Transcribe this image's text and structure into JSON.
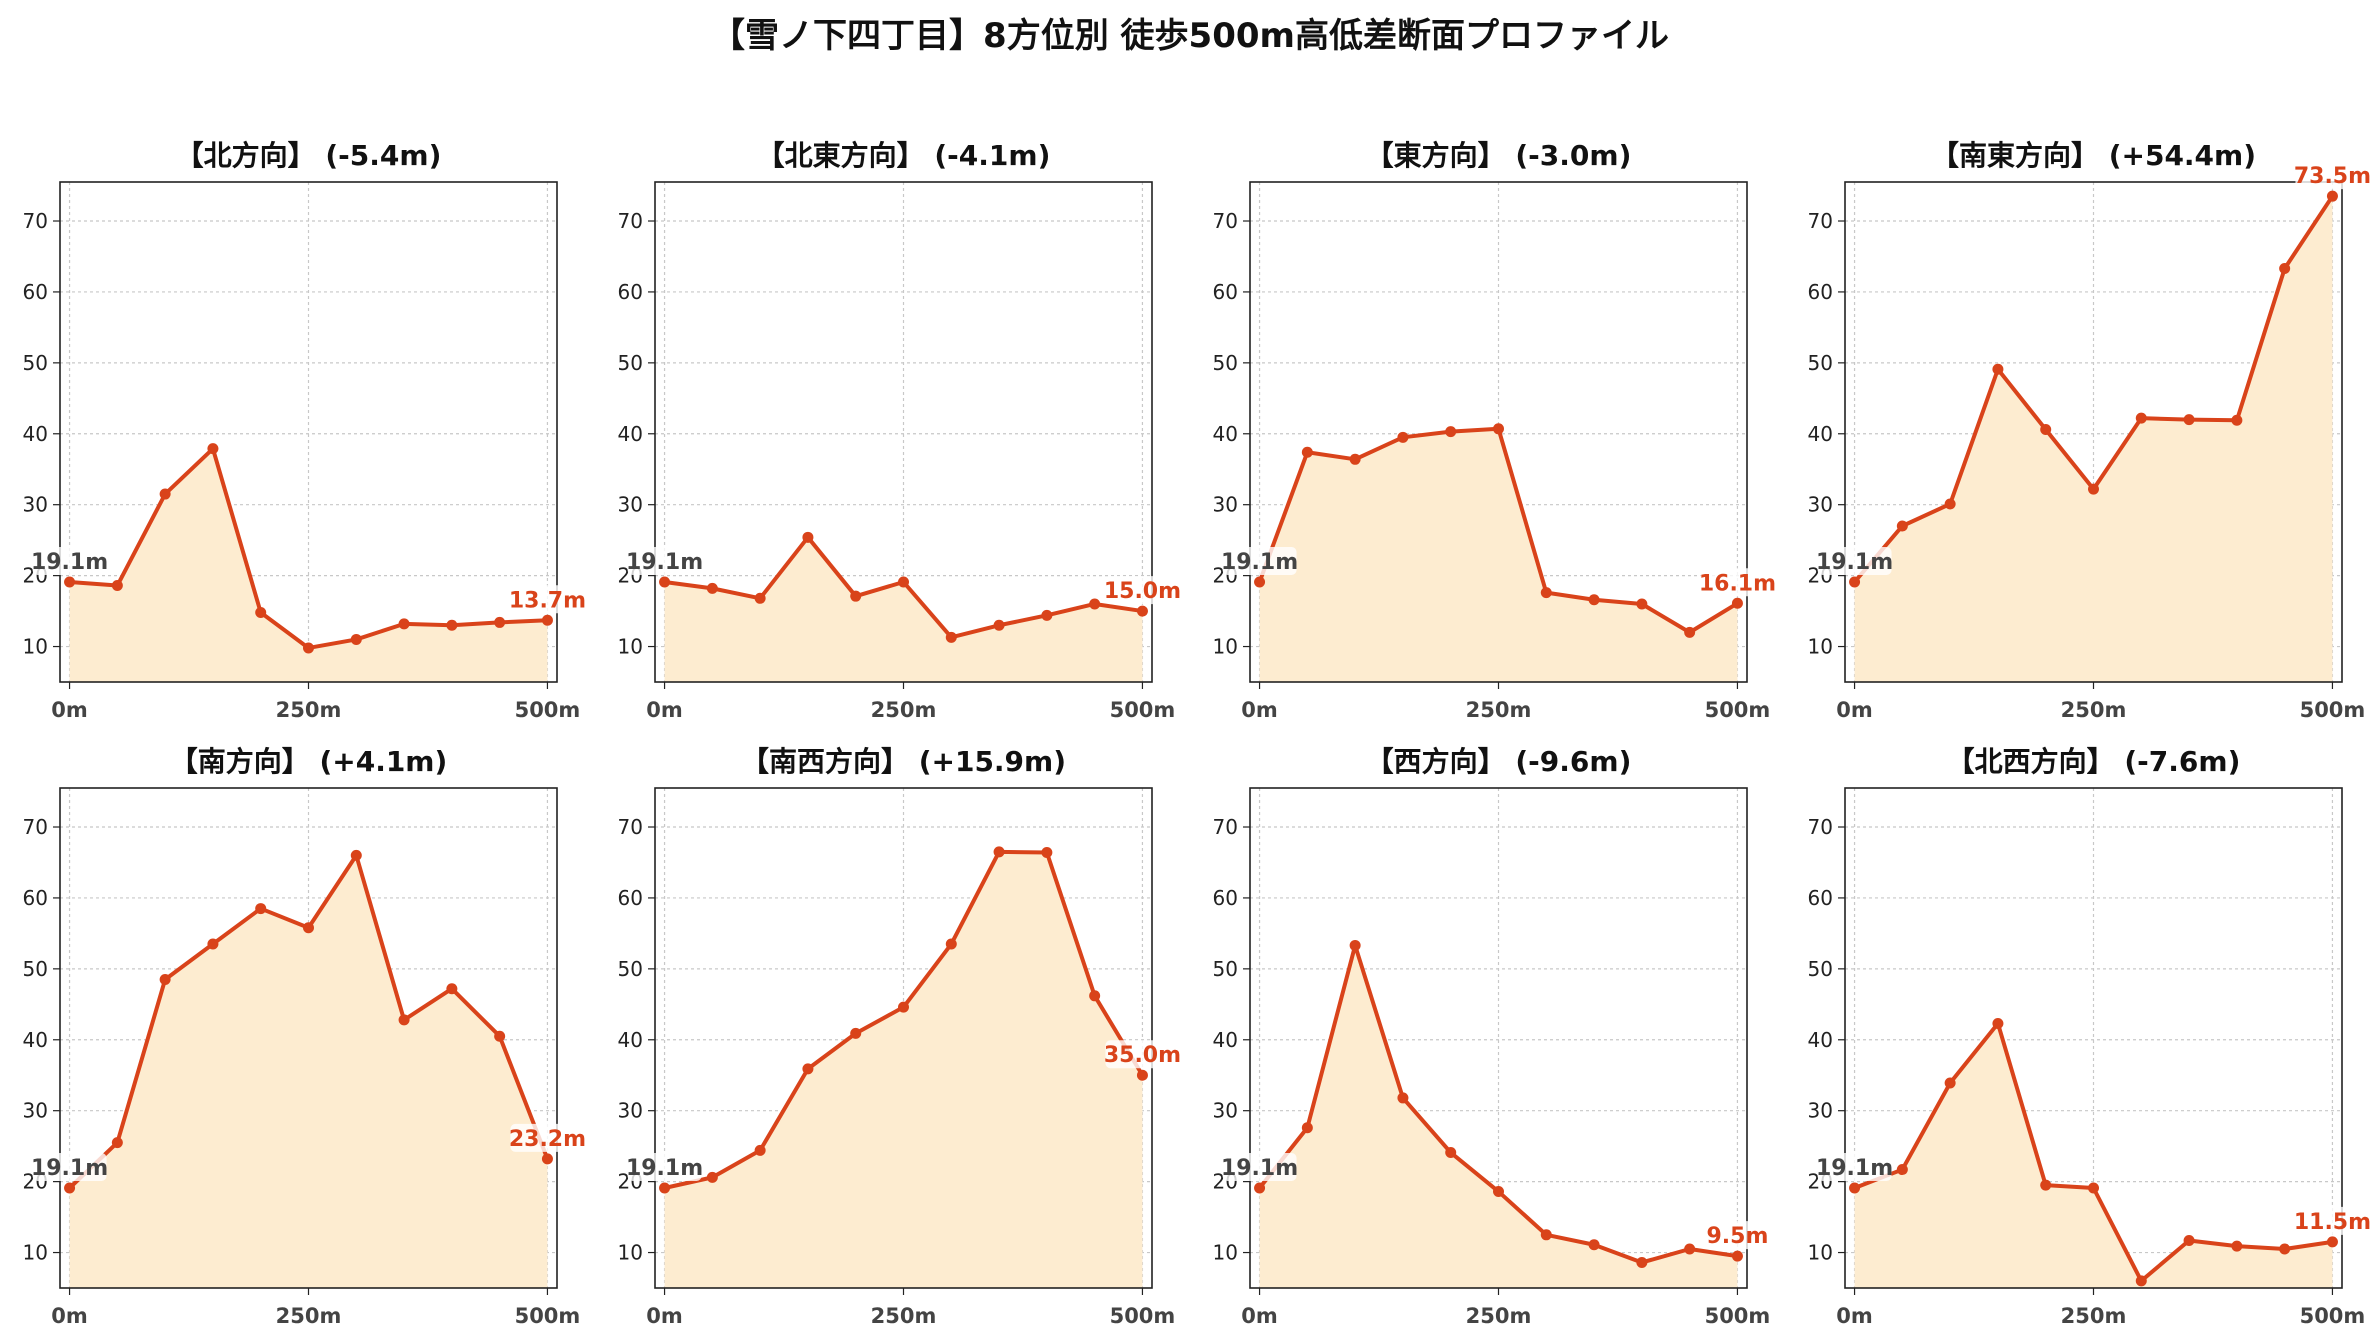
{
  "title": "【雪ノ下四丁目】8方位別 徒歩500m高低差断面プロファイル",
  "colors": {
    "line": "#d9431a",
    "fill": "#fdecd0",
    "start_label": "#444444",
    "end_label": "#d9431a",
    "grid": "#c8c8c8"
  },
  "chart_data": [
    {
      "type": "area",
      "title": "【北方向】 (-5.4m)",
      "x": [
        0,
        50,
        100,
        150,
        200,
        250,
        300,
        350,
        400,
        450,
        500
      ],
      "values": [
        19.1,
        18.6,
        31.5,
        37.9,
        14.8,
        9.8,
        11.0,
        13.2,
        13.0,
        13.4,
        13.7
      ],
      "xticks": [
        "0m",
        "250m",
        "500m"
      ],
      "yticks": [
        "10",
        "20",
        "30",
        "40",
        "50",
        "60",
        "70"
      ],
      "xlim": [
        -10,
        510
      ],
      "ylim": [
        5,
        75.5
      ],
      "grid": true,
      "start_label": "19.1m",
      "end_label": "13.7m"
    },
    {
      "type": "area",
      "title": "【北東方向】 (-4.1m)",
      "x": [
        0,
        50,
        100,
        150,
        200,
        250,
        300,
        350,
        400,
        450,
        500
      ],
      "values": [
        19.1,
        18.2,
        16.8,
        25.4,
        17.1,
        19.1,
        11.3,
        13.0,
        14.4,
        16.0,
        15.0
      ],
      "xticks": [
        "0m",
        "250m",
        "500m"
      ],
      "yticks": [
        "10",
        "20",
        "30",
        "40",
        "50",
        "60",
        "70"
      ],
      "xlim": [
        -10,
        510
      ],
      "ylim": [
        5,
        75.5
      ],
      "grid": true,
      "start_label": "19.1m",
      "end_label": "15.0m"
    },
    {
      "type": "area",
      "title": "【東方向】 (-3.0m)",
      "x": [
        0,
        50,
        100,
        150,
        200,
        250,
        300,
        350,
        400,
        450,
        500
      ],
      "values": [
        19.1,
        37.4,
        36.4,
        39.5,
        40.3,
        40.7,
        17.6,
        16.6,
        16.0,
        12.0,
        16.1
      ],
      "xticks": [
        "0m",
        "250m",
        "500m"
      ],
      "yticks": [
        "10",
        "20",
        "30",
        "40",
        "50",
        "60",
        "70"
      ],
      "xlim": [
        -10,
        510
      ],
      "ylim": [
        5,
        75.5
      ],
      "grid": true,
      "start_label": "19.1m",
      "end_label": "16.1m"
    },
    {
      "type": "area",
      "title": "【南東方向】 (+54.4m)",
      "x": [
        0,
        50,
        100,
        150,
        200,
        250,
        300,
        350,
        400,
        450,
        500
      ],
      "values": [
        19.1,
        27.0,
        30.1,
        49.1,
        40.6,
        32.2,
        42.2,
        42.0,
        41.9,
        63.3,
        73.5
      ],
      "xticks": [
        "0m",
        "250m",
        "500m"
      ],
      "yticks": [
        "10",
        "20",
        "30",
        "40",
        "50",
        "60",
        "70"
      ],
      "xlim": [
        -10,
        510
      ],
      "ylim": [
        5,
        75.5
      ],
      "grid": true,
      "start_label": "19.1m",
      "end_label": "73.5m"
    },
    {
      "type": "area",
      "title": "【南方向】 (+4.1m)",
      "x": [
        0,
        50,
        100,
        150,
        200,
        250,
        300,
        350,
        400,
        450,
        500
      ],
      "values": [
        19.1,
        25.5,
        48.5,
        53.5,
        58.5,
        55.8,
        66.0,
        42.8,
        47.2,
        40.5,
        23.2
      ],
      "xticks": [
        "0m",
        "250m",
        "500m"
      ],
      "yticks": [
        "10",
        "20",
        "30",
        "40",
        "50",
        "60",
        "70"
      ],
      "xlim": [
        -10,
        510
      ],
      "ylim": [
        5,
        75.5
      ],
      "grid": true,
      "start_label": "19.1m",
      "end_label": "23.2m"
    },
    {
      "type": "area",
      "title": "【南西方向】 (+15.9m)",
      "x": [
        0,
        50,
        100,
        150,
        200,
        250,
        300,
        350,
        400,
        450,
        500
      ],
      "values": [
        19.1,
        20.6,
        24.4,
        35.9,
        40.9,
        44.6,
        53.5,
        66.5,
        66.4,
        46.2,
        35.0
      ],
      "xticks": [
        "0m",
        "250m",
        "500m"
      ],
      "yticks": [
        "10",
        "20",
        "30",
        "40",
        "50",
        "60",
        "70"
      ],
      "xlim": [
        -10,
        510
      ],
      "ylim": [
        5,
        75.5
      ],
      "grid": true,
      "start_label": "19.1m",
      "end_label": "35.0m"
    },
    {
      "type": "area",
      "title": "【西方向】 (-9.6m)",
      "x": [
        0,
        50,
        100,
        150,
        200,
        250,
        300,
        350,
        400,
        450,
        500
      ],
      "values": [
        19.1,
        27.6,
        53.3,
        31.8,
        24.1,
        18.6,
        12.5,
        11.1,
        8.6,
        10.5,
        9.5
      ],
      "xticks": [
        "0m",
        "250m",
        "500m"
      ],
      "yticks": [
        "10",
        "20",
        "30",
        "40",
        "50",
        "60",
        "70"
      ],
      "xlim": [
        -10,
        510
      ],
      "ylim": [
        5,
        75.5
      ],
      "grid": true,
      "start_label": "19.1m",
      "end_label": "9.5m"
    },
    {
      "type": "area",
      "title": "【北西方向】 (-7.6m)",
      "x": [
        0,
        50,
        100,
        150,
        200,
        250,
        300,
        350,
        400,
        450,
        500
      ],
      "values": [
        19.1,
        21.7,
        33.9,
        42.3,
        19.5,
        19.1,
        6.0,
        11.7,
        10.9,
        10.5,
        11.5
      ],
      "xticks": [
        "0m",
        "250m",
        "500m"
      ],
      "yticks": [
        "10",
        "20",
        "30",
        "40",
        "50",
        "60",
        "70"
      ],
      "xlim": [
        -10,
        510
      ],
      "ylim": [
        5,
        75.5
      ],
      "grid": true,
      "start_label": "19.1m",
      "end_label": "11.5m"
    }
  ]
}
